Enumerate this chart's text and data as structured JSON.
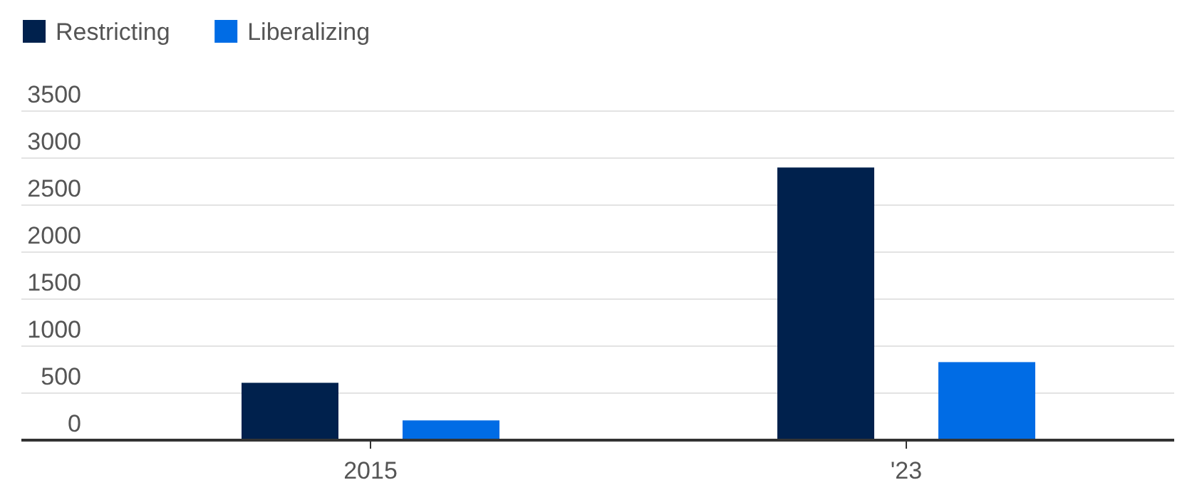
{
  "chart_data": {
    "type": "bar",
    "categories": [
      "2015",
      "'23"
    ],
    "series": [
      {
        "name": "Restricting",
        "color": "#00214d",
        "values": [
          610,
          2900
        ]
      },
      {
        "name": "Liberalizing",
        "color": "#006ce5",
        "values": [
          210,
          830
        ]
      }
    ],
    "ylim": [
      0,
      3500
    ],
    "yticks": [
      0,
      500,
      1000,
      1500,
      2000,
      2500,
      3000,
      3500
    ],
    "grid": "y",
    "legend": "top left"
  }
}
